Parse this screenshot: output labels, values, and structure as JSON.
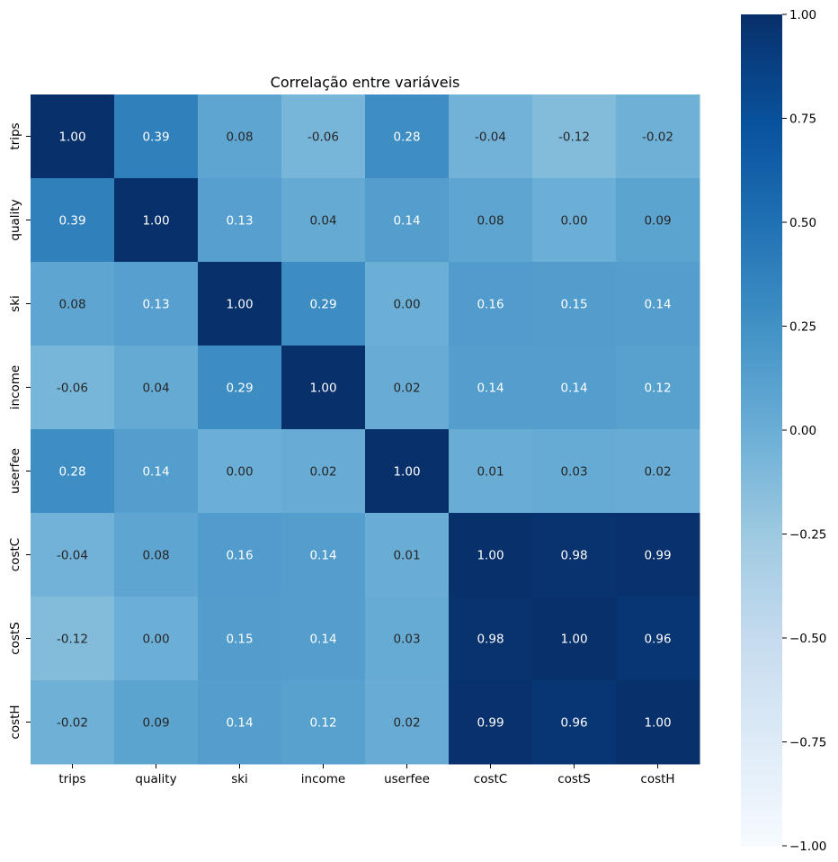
{
  "chart_data": {
    "type": "heatmap",
    "title": "Correlação entre variáveis",
    "xlabel": "",
    "ylabel": "",
    "x_categories": [
      "trips",
      "quality",
      "ski",
      "income",
      "userfee",
      "costC",
      "costS",
      "costH"
    ],
    "y_categories": [
      "trips",
      "quality",
      "ski",
      "income",
      "userfee",
      "costC",
      "costS",
      "costH"
    ],
    "values": [
      [
        1.0,
        0.39,
        0.08,
        -0.06,
        0.28,
        -0.04,
        -0.12,
        -0.02
      ],
      [
        0.39,
        1.0,
        0.13,
        0.04,
        0.14,
        0.08,
        0.0,
        0.09
      ],
      [
        0.08,
        0.13,
        1.0,
        0.29,
        0.0,
        0.16,
        0.15,
        0.14
      ],
      [
        -0.06,
        0.04,
        0.29,
        1.0,
        0.02,
        0.14,
        0.14,
        0.12
      ],
      [
        0.28,
        0.14,
        0.0,
        0.02,
        1.0,
        0.01,
        0.03,
        0.02
      ],
      [
        -0.04,
        0.08,
        0.16,
        0.14,
        0.01,
        1.0,
        0.98,
        0.99
      ],
      [
        -0.12,
        0.0,
        0.15,
        0.14,
        0.03,
        0.98,
        1.0,
        0.96
      ],
      [
        -0.02,
        0.09,
        0.14,
        0.12,
        0.02,
        0.99,
        0.96,
        1.0
      ]
    ],
    "value_format": "0.00",
    "colormap": "Blues",
    "vmin": -1.0,
    "vmax": 1.0,
    "colorbar_ticks": [
      "1.00",
      "0.75",
      "0.50",
      "0.25",
      "0.00",
      "−0.25",
      "−0.50",
      "−0.75",
      "−1.00"
    ],
    "colorbar_tick_values": [
      1.0,
      0.75,
      0.5,
      0.25,
      0.0,
      -0.25,
      -0.5,
      -0.75,
      -1.0
    ],
    "colorbar_position": "right",
    "grid": false
  }
}
